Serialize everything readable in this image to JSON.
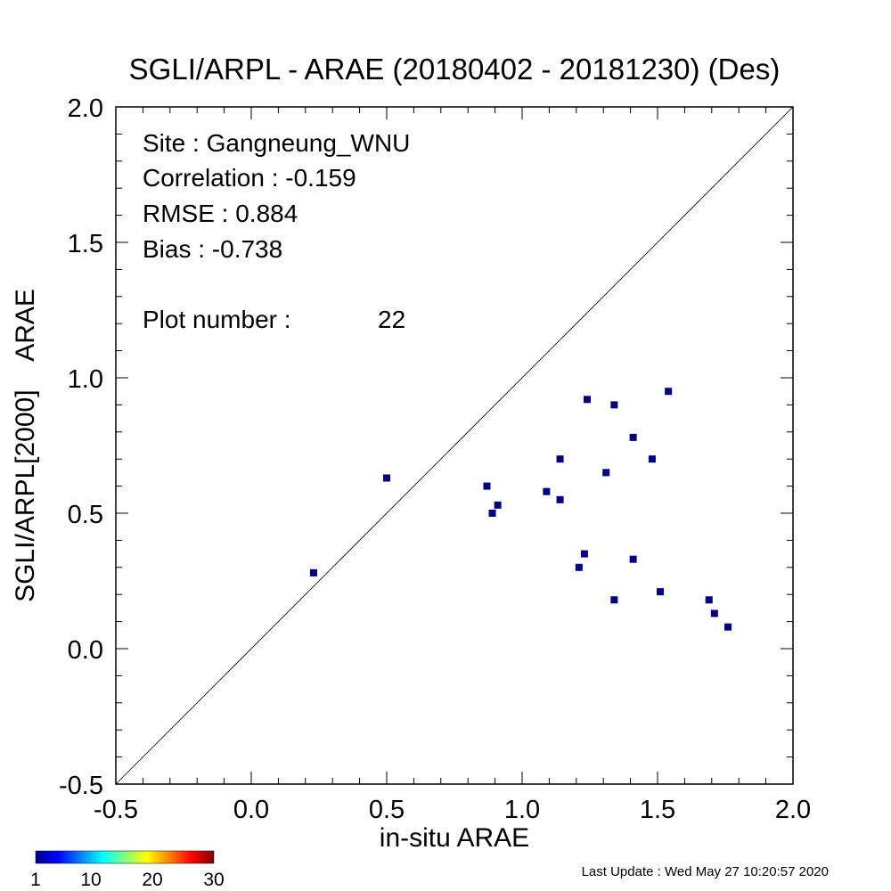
{
  "chart_data": {
    "type": "scatter",
    "title": "SGLI/ARPL - ARAE (20180402 - 20181230) (Des)",
    "xlabel": "in-situ ARAE",
    "ylabel": "SGLI/ARPL[2000]    ARAE",
    "xlim": [
      -0.5,
      2.0
    ],
    "ylim": [
      -0.5,
      2.0
    ],
    "x_ticks": [
      "-0.5",
      "0.0",
      "0.5",
      "1.0",
      "1.5",
      "2.0"
    ],
    "y_ticks": [
      "-0.5",
      "0.0",
      "0.5",
      "1.0",
      "1.5",
      "2.0"
    ],
    "one_to_one_line": true,
    "grid": false,
    "marker_color": "#000080",
    "series": [
      {
        "points": [
          [
            0.23,
            0.28
          ],
          [
            0.5,
            0.63
          ],
          [
            0.87,
            0.6
          ],
          [
            0.89,
            0.5
          ],
          [
            0.91,
            0.53
          ],
          [
            1.09,
            0.58
          ],
          [
            1.14,
            0.55
          ],
          [
            1.14,
            0.7
          ],
          [
            1.21,
            0.3
          ],
          [
            1.23,
            0.35
          ],
          [
            1.24,
            0.92
          ],
          [
            1.31,
            0.65
          ],
          [
            1.34,
            0.9
          ],
          [
            1.34,
            0.18
          ],
          [
            1.41,
            0.78
          ],
          [
            1.41,
            0.33
          ],
          [
            1.48,
            0.7
          ],
          [
            1.51,
            0.21
          ],
          [
            1.54,
            0.95
          ],
          [
            1.69,
            0.18
          ],
          [
            1.71,
            0.13
          ],
          [
            1.76,
            0.08
          ]
        ]
      }
    ],
    "stats": {
      "site": "Site : Gangneung_WNU",
      "correlation": "Correlation :   -0.159",
      "rmse": "RMSE :    0.884",
      "bias": "Bias :   -0.738",
      "plot_number_label": "Plot number :",
      "plot_number_value": "22"
    },
    "colorbar": {
      "labels": [
        "1",
        "10",
        "20",
        "30"
      ],
      "values": [
        1,
        10,
        20,
        30
      ],
      "colors": [
        "#00008f",
        "#0000ff",
        "#0080ff",
        "#00ffff",
        "#80ff80",
        "#ffff00",
        "#ff8000",
        "#ff0000",
        "#800000"
      ]
    }
  },
  "footer": {
    "last_update": "Last Update : Wed May 27 10:20:57 2020"
  }
}
